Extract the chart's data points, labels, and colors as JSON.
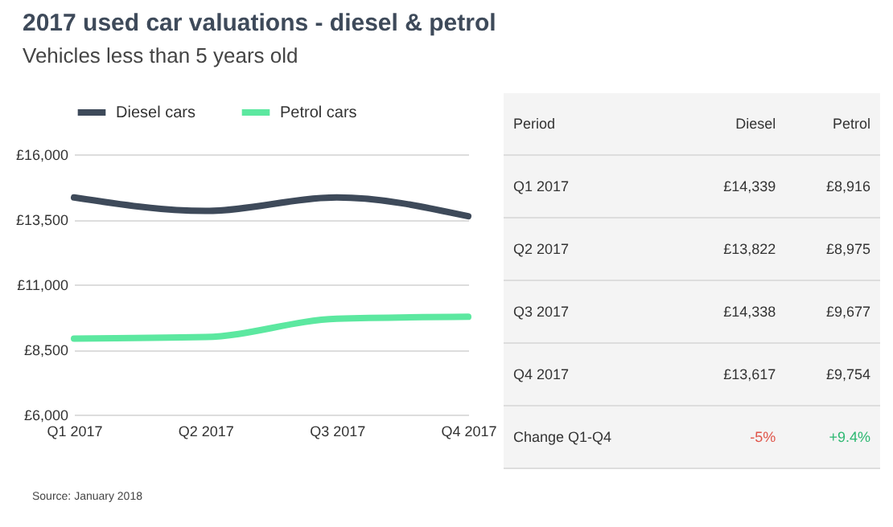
{
  "chart_data": {
    "type": "line",
    "title": "2017 used car valuations - diesel & petrol",
    "subtitle": "Vehicles less than 5 years old",
    "categories": [
      "Q1 2017",
      "Q2 2017",
      "Q3 2017",
      "Q4 2017"
    ],
    "series": [
      {
        "name": "Diesel cars",
        "color": "#3e4a5a",
        "values": [
          14339,
          13822,
          14338,
          13617
        ]
      },
      {
        "name": "Petrol cars",
        "color": "#5ce8a0",
        "values": [
          8916,
          8975,
          9677,
          9754
        ]
      }
    ],
    "ylim": [
      6000,
      16000
    ],
    "yticks": [
      {
        "value": 6000,
        "label": "£6,000"
      },
      {
        "value": 8500,
        "label": "£8,500"
      },
      {
        "value": 11000,
        "label": "£11,000"
      },
      {
        "value": 13500,
        "label": "£13,500"
      },
      {
        "value": 16000,
        "label": "£16,000"
      }
    ],
    "grid": "y",
    "legend": "top",
    "marker": "none",
    "line_style": "solid",
    "annotations": [
      "Period",
      "Diesel",
      "Petrol",
      "Q1 2017",
      "£14,339",
      "£8,916",
      "Q2 2017",
      "£13,822",
      "£8,975",
      "Q3 2017",
      "£14,338",
      "£9,677",
      "Q4 2017",
      "£13,617",
      "£9,754",
      "Change Q1-Q4",
      "-5%",
      "+9.4%",
      "Source: January 2018"
    ]
  }
}
